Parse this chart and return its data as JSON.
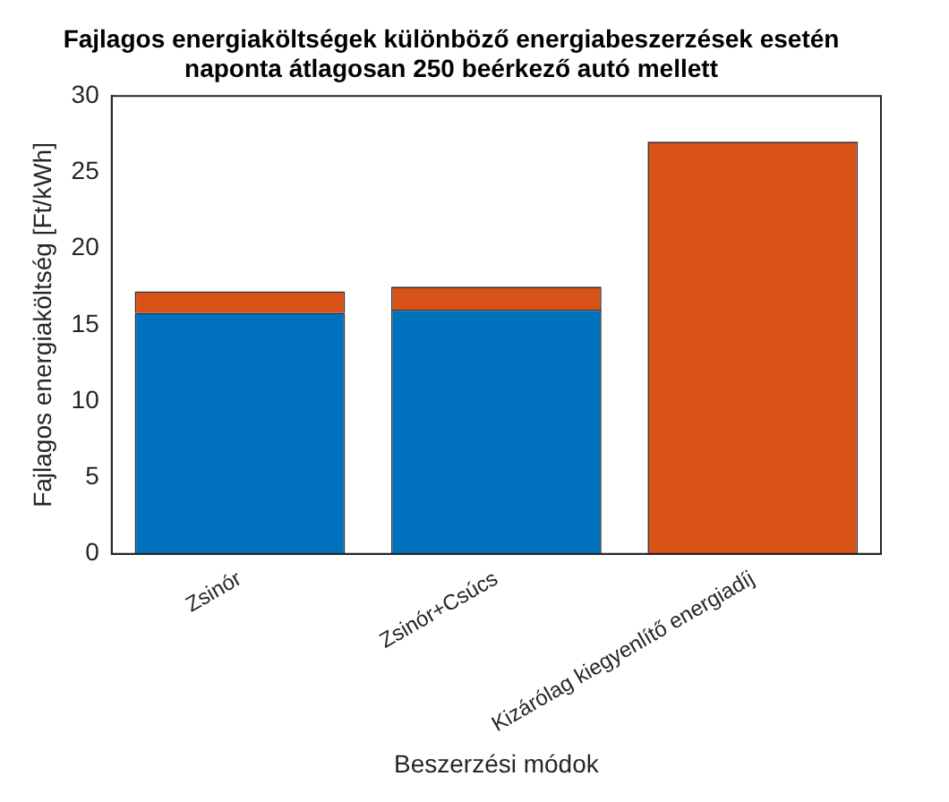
{
  "chart_data": {
    "type": "bar",
    "title": "Fajlagos energiaköltségek különböző energiabeszerzések esetén\nnaponta átlagosan 250 beérkező autó mellett",
    "xlabel": "Beszerzési módok",
    "ylabel": "Fajlagos energiaköltség [Ft/kWh]",
    "categories": [
      "Zsinór",
      "Zsinór+Csúcs",
      "Kizárólag kiegyenlítő energiadíj"
    ],
    "stacked": true,
    "ylim": [
      0,
      30
    ],
    "yticks": [
      0,
      5,
      10,
      15,
      20,
      25,
      30
    ],
    "grid": false,
    "legend": false,
    "series": [
      {
        "color": "#0072bd",
        "values": [
          15.8,
          16.0,
          0
        ]
      },
      {
        "color": "#d95319",
        "values": [
          1.4,
          1.5,
          27.0
        ]
      }
    ]
  }
}
